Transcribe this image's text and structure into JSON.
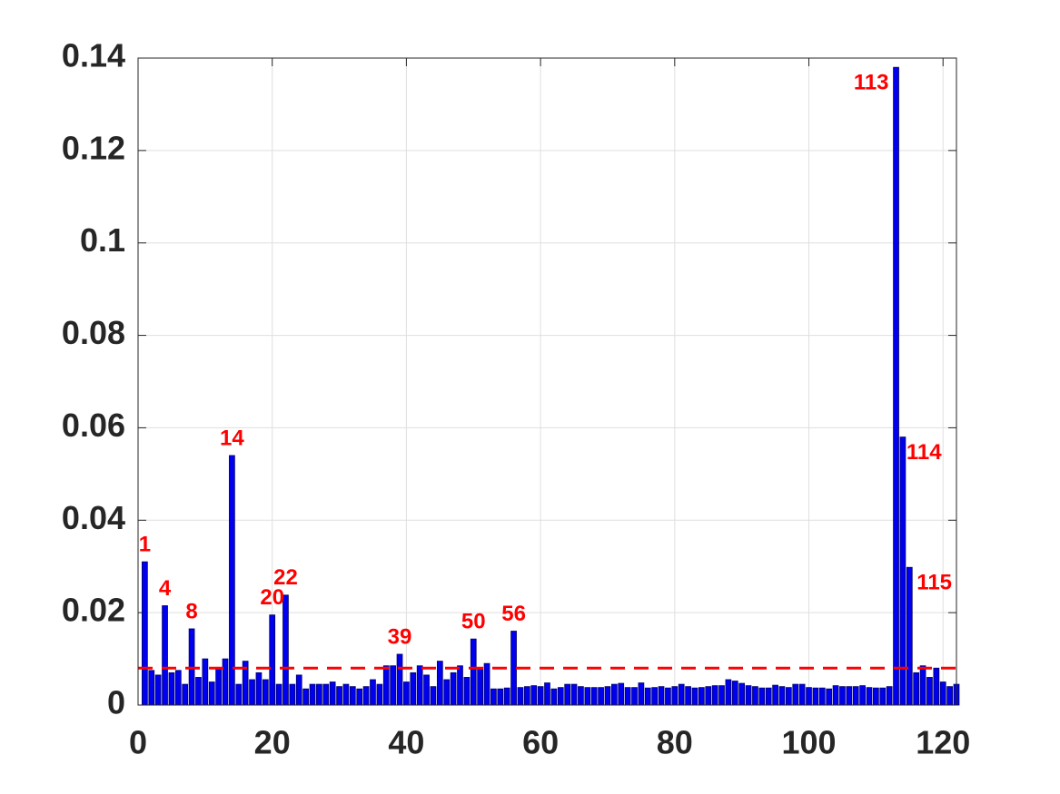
{
  "chart_data": {
    "type": "bar",
    "x": [
      1,
      2,
      3,
      4,
      5,
      6,
      7,
      8,
      9,
      10,
      11,
      12,
      13,
      14,
      15,
      16,
      17,
      18,
      19,
      20,
      21,
      22,
      23,
      24,
      25,
      26,
      27,
      28,
      29,
      30,
      31,
      32,
      33,
      34,
      35,
      36,
      37,
      38,
      39,
      40,
      41,
      42,
      43,
      44,
      45,
      46,
      47,
      48,
      49,
      50,
      51,
      52,
      53,
      54,
      55,
      56,
      57,
      58,
      59,
      60,
      61,
      62,
      63,
      64,
      65,
      66,
      67,
      68,
      69,
      70,
      71,
      72,
      73,
      74,
      75,
      76,
      77,
      78,
      79,
      80,
      81,
      82,
      83,
      84,
      85,
      86,
      87,
      88,
      89,
      90,
      91,
      92,
      93,
      94,
      95,
      96,
      97,
      98,
      99,
      100,
      101,
      102,
      103,
      104,
      105,
      106,
      107,
      108,
      109,
      110,
      111,
      112,
      113,
      114,
      115,
      116,
      117,
      118,
      119,
      120,
      121,
      122
    ],
    "values": [
      0.031,
      0.0075,
      0.0065,
      0.0215,
      0.007,
      0.0075,
      0.0045,
      0.0165,
      0.006,
      0.01,
      0.005,
      0.008,
      0.01,
      0.054,
      0.0045,
      0.0095,
      0.0055,
      0.007,
      0.0055,
      0.0195,
      0.0045,
      0.0238,
      0.0045,
      0.0065,
      0.0035,
      0.0045,
      0.0045,
      0.0045,
      0.005,
      0.004,
      0.0045,
      0.004,
      0.0035,
      0.004,
      0.0055,
      0.0045,
      0.0085,
      0.0085,
      0.011,
      0.005,
      0.007,
      0.0085,
      0.0065,
      0.004,
      0.0095,
      0.0055,
      0.007,
      0.0085,
      0.006,
      0.0143,
      0.008,
      0.009,
      0.0035,
      0.0035,
      0.0037,
      0.016,
      0.0038,
      0.004,
      0.0042,
      0.004,
      0.0048,
      0.0035,
      0.0038,
      0.0045,
      0.0045,
      0.004,
      0.0038,
      0.0038,
      0.0038,
      0.004,
      0.0045,
      0.0047,
      0.0038,
      0.0038,
      0.0048,
      0.0037,
      0.0038,
      0.004,
      0.0037,
      0.004,
      0.0045,
      0.004,
      0.0037,
      0.0038,
      0.004,
      0.0042,
      0.0042,
      0.0055,
      0.0052,
      0.0047,
      0.0042,
      0.004,
      0.0037,
      0.0037,
      0.0043,
      0.004,
      0.0038,
      0.0045,
      0.0045,
      0.0038,
      0.0037,
      0.0037,
      0.0035,
      0.0042,
      0.004,
      0.004,
      0.004,
      0.0042,
      0.0038,
      0.0037,
      0.0037,
      0.004,
      0.138,
      0.058,
      0.0298,
      0.007,
      0.0085,
      0.006,
      0.008,
      0.005,
      0.004,
      0.0045
    ],
    "color": "#0000ee",
    "edge_color": "#00006a",
    "threshold": {
      "value": 0.008,
      "color": "#ff0000",
      "style": "dashed"
    },
    "annotations": [
      {
        "text": "1",
        "x": 1
      },
      {
        "text": "4",
        "x": 4
      },
      {
        "text": "8",
        "x": 8
      },
      {
        "text": "14",
        "x": 14
      },
      {
        "text": "20",
        "x": 20
      },
      {
        "text": "22",
        "x": 22
      },
      {
        "text": "39",
        "x": 39
      },
      {
        "text": "50",
        "x": 50
      },
      {
        "text": "56",
        "x": 56
      },
      {
        "text": "113",
        "x": 113
      },
      {
        "text": "114",
        "x": 114
      },
      {
        "text": "115",
        "x": 115
      }
    ],
    "annotation_color": "#ff0000",
    "xlim": [
      0,
      122
    ],
    "xticks": [
      0,
      20,
      40,
      60,
      80,
      100,
      120
    ],
    "ylim": [
      0,
      0.14
    ],
    "yticks": [
      0,
      0.02,
      0.04,
      0.06,
      0.08,
      0.1,
      0.12,
      0.14
    ],
    "grid": true
  }
}
